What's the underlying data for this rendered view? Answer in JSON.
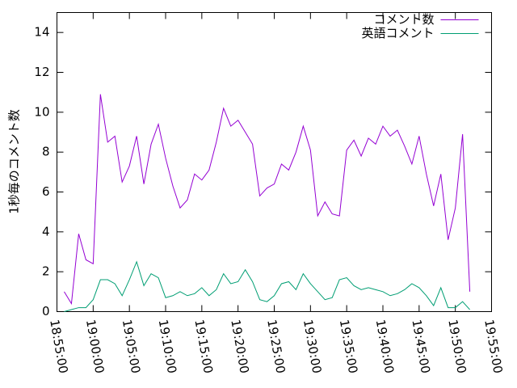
{
  "chart_data": {
    "type": "line",
    "ylabel": "1秒毎のコメント数",
    "x": [
      "18:56:00",
      "18:57:00",
      "18:58:00",
      "18:59:00",
      "19:00:00",
      "19:01:00",
      "19:02:00",
      "19:03:00",
      "19:04:00",
      "19:05:00",
      "19:06:00",
      "19:07:00",
      "19:08:00",
      "19:09:00",
      "19:10:00",
      "19:11:00",
      "19:12:00",
      "19:13:00",
      "19:14:00",
      "19:15:00",
      "19:16:00",
      "19:17:00",
      "19:18:00",
      "19:19:00",
      "19:20:00",
      "19:21:00",
      "19:22:00",
      "19:23:00",
      "19:24:00",
      "19:25:00",
      "19:26:00",
      "19:27:00",
      "19:28:00",
      "19:29:00",
      "19:30:00",
      "19:31:00",
      "19:32:00",
      "19:33:00",
      "19:34:00",
      "19:35:00",
      "19:36:00",
      "19:37:00",
      "19:38:00",
      "19:39:00",
      "19:40:00",
      "19:41:00",
      "19:42:00",
      "19:43:00",
      "19:44:00",
      "19:45:00",
      "19:46:00",
      "19:47:00",
      "19:48:00",
      "19:49:00",
      "19:50:00",
      "19:51:00",
      "19:52:00"
    ],
    "series": [
      {
        "name": "コメント数",
        "color": "#9400d3",
        "values": [
          1.0,
          0.4,
          3.9,
          2.6,
          2.4,
          10.9,
          8.5,
          8.8,
          6.5,
          7.3,
          8.8,
          6.4,
          8.4,
          9.4,
          7.7,
          6.3,
          5.2,
          5.6,
          6.9,
          6.6,
          7.1,
          8.5,
          10.2,
          9.3,
          9.6,
          9.0,
          8.4,
          5.8,
          6.2,
          6.4,
          7.4,
          7.1,
          8.0,
          9.3,
          8.1,
          4.8,
          5.5,
          4.9,
          4.8,
          8.1,
          8.6,
          7.8,
          8.7,
          8.4,
          9.3,
          8.8,
          9.1,
          8.3,
          7.4,
          8.8,
          6.9,
          5.3,
          6.9,
          3.6,
          5.2,
          8.9,
          1.0
        ]
      },
      {
        "name": "英語コメント",
        "color": "#009e73",
        "values": [
          0,
          0.1,
          0.2,
          0.2,
          0.6,
          1.6,
          1.6,
          1.4,
          0.8,
          1.6,
          2.5,
          1.3,
          1.9,
          1.7,
          0.7,
          0.8,
          1.0,
          0.8,
          0.9,
          1.2,
          0.8,
          1.1,
          1.9,
          1.4,
          1.5,
          2.1,
          1.5,
          0.6,
          0.5,
          0.8,
          1.4,
          1.5,
          1.1,
          1.9,
          1.4,
          1.0,
          0.6,
          0.7,
          1.6,
          1.7,
          1.3,
          1.1,
          1.2,
          1.1,
          1.0,
          0.8,
          0.9,
          1.1,
          1.4,
          1.2,
          0.8,
          0.3,
          1.2,
          0.2,
          0.2,
          0.5,
          0.1
        ]
      }
    ],
    "xlim": [
      "18:55:00",
      "19:55:00"
    ],
    "xticks": [
      "18:55:00",
      "19:00:00",
      "19:05:00",
      "19:10:00",
      "19:15:00",
      "19:20:00",
      "19:25:00",
      "19:30:00",
      "19:35:00",
      "19:40:00",
      "19:45:00",
      "19:50:00",
      "19:55:00"
    ],
    "ylim": [
      0,
      15
    ],
    "yticks": [
      0,
      2,
      4,
      6,
      8,
      10,
      12,
      14
    ],
    "legend": "top-right",
    "grid": false
  }
}
